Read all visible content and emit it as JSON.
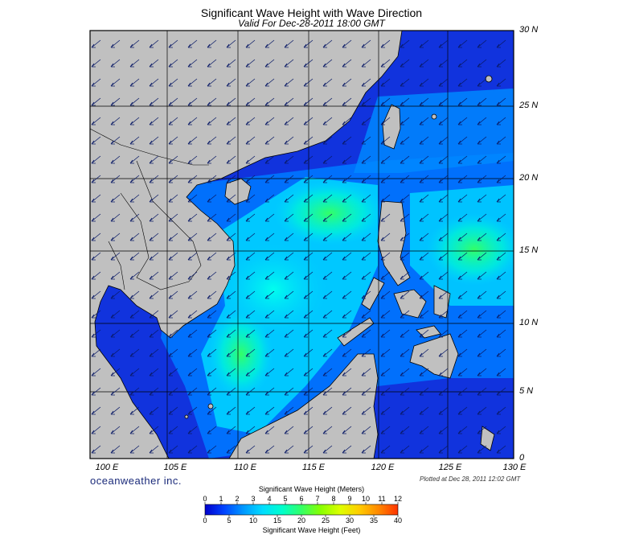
{
  "title": "Significant Wave Height with Wave Direction",
  "subtitle": "Valid For Dec-28-2011 18:00 GMT",
  "lat_labels": [
    "30 N",
    "25 N",
    "20 N",
    "15 N",
    "10 N",
    "5 N",
    "0"
  ],
  "lon_labels": [
    "100 E",
    "105 E",
    "110 E",
    "115 E",
    "120 E",
    "125 E",
    "130 E"
  ],
  "brand": "oceanweather inc.",
  "plotted_at": "Plotted at Dec 28, 2011 12:02 GMT",
  "colorbar": {
    "title_meters": "Significant Wave Height (Meters)",
    "title_feet": "Significant Wave Height (Feet)",
    "meters_ticks": [
      "0",
      "1",
      "2",
      "3",
      "4",
      "5",
      "6",
      "7",
      "8",
      "9",
      "10",
      "11",
      "12"
    ],
    "feet_ticks": [
      "0",
      "5",
      "10",
      "15",
      "20",
      "25",
      "30",
      "35",
      "40"
    ],
    "gradient_colors": [
      "#0000cc",
      "#0044ff",
      "#0099ff",
      "#00ddff",
      "#00ffcc",
      "#33ff66",
      "#88ff00",
      "#ddff00",
      "#ffcc00",
      "#ff8800",
      "#ff3300"
    ]
  },
  "colors": {
    "land": "#c0c0c0",
    "ocean_low": "#1133dd",
    "ocean_mid": "#00aaff",
    "ocean_high": "#00ffcc",
    "peak": "#33ff66",
    "arrow": "#0a1a66"
  },
  "wave_direction": "from northeast"
}
